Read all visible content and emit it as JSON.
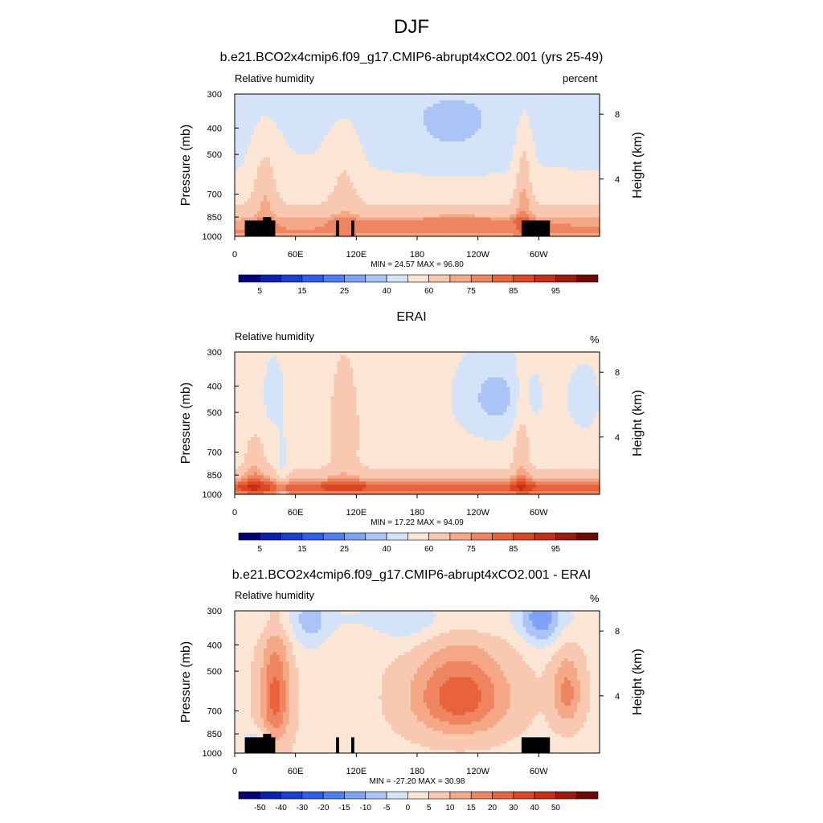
{
  "title": "DJF",
  "chart_data": [
    {
      "type": "heatmap",
      "title": "b.e21.BCO2x4cmip6.f09_g17.CMIP6-abrupt4xCO2.001 (yrs 25-49)",
      "left_label": "Relative humidity",
      "right_label": "percent",
      "ylabel": "Pressure (mb)",
      "y2label": "Height (km)",
      "y_ticks": [
        "300",
        "400",
        "500",
        "700",
        "850",
        "1000"
      ],
      "y_tick_values": [
        300,
        400,
        500,
        700,
        850,
        1000
      ],
      "y2_ticks": [
        "8",
        "4"
      ],
      "x_ticks": [
        "0",
        "60E",
        "120E",
        "180",
        "120W",
        "60W"
      ],
      "x_tick_values": [
        0,
        60,
        120,
        180,
        240,
        300
      ],
      "xlim": [
        0,
        360
      ],
      "ylim": [
        1000,
        300
      ],
      "min_max_text": "MIN = 24.57  MAX = 96.80",
      "levels": [
        5,
        10,
        15,
        20,
        25,
        30,
        40,
        50,
        60,
        70,
        75,
        80,
        85,
        90,
        95
      ],
      "level_labels": [
        "5",
        "15",
        "25",
        "40",
        "60",
        "75",
        "85",
        "95"
      ],
      "colors": [
        "#00007a",
        "#0b1fb0",
        "#1b3ed6",
        "#2e5ef0",
        "#4d7ef5",
        "#7ea2f5",
        "#aac5f5",
        "#d5e3f8",
        "#fbe6d6",
        "#f8c9b0",
        "#f4a886",
        "#ef8560",
        "#e9633a",
        "#dd4622",
        "#c42f16",
        "#9e1a0d",
        "#6e0a06"
      ],
      "field": "rh_model"
    },
    {
      "type": "heatmap",
      "title": "ERAI",
      "left_label": "Relative humidity",
      "right_label": "%",
      "ylabel": "Pressure (mb)",
      "y2label": "Height (km)",
      "y_ticks": [
        "300",
        "400",
        "500",
        "700",
        "850",
        "1000"
      ],
      "y_tick_values": [
        300,
        400,
        500,
        700,
        850,
        1000
      ],
      "y2_ticks": [
        "8",
        "4"
      ],
      "x_ticks": [
        "0",
        "60E",
        "120E",
        "180",
        "120W",
        "60W"
      ],
      "x_tick_values": [
        0,
        60,
        120,
        180,
        240,
        300
      ],
      "xlim": [
        0,
        360
      ],
      "ylim": [
        1000,
        300
      ],
      "min_max_text": "MIN = 17.22  MAX = 94.09",
      "levels": [
        5,
        10,
        15,
        20,
        25,
        30,
        40,
        50,
        60,
        70,
        75,
        80,
        85,
        90,
        95
      ],
      "level_labels": [
        "5",
        "15",
        "25",
        "40",
        "60",
        "75",
        "85",
        "95"
      ],
      "colors": [
        "#00007a",
        "#0b1fb0",
        "#1b3ed6",
        "#2e5ef0",
        "#4d7ef5",
        "#7ea2f5",
        "#aac5f5",
        "#d5e3f8",
        "#fbe6d6",
        "#f8c9b0",
        "#f4a886",
        "#ef8560",
        "#e9633a",
        "#dd4622",
        "#c42f16",
        "#9e1a0d",
        "#6e0a06"
      ],
      "field": "rh_obs"
    },
    {
      "type": "heatmap",
      "title": "b.e21.BCO2x4cmip6.f09_g17.CMIP6-abrupt4xCO2.001 - ERAI",
      "left_label": "Relative humidity",
      "right_label": "%",
      "ylabel": "Pressure (mb)",
      "y2label": "Height (km)",
      "y_ticks": [
        "300",
        "400",
        "500",
        "700",
        "850",
        "1000"
      ],
      "y_tick_values": [
        300,
        400,
        500,
        700,
        850,
        1000
      ],
      "y2_ticks": [
        "8",
        "4"
      ],
      "x_ticks": [
        "0",
        "60E",
        "120E",
        "180",
        "120W",
        "60W"
      ],
      "x_tick_values": [
        0,
        60,
        120,
        180,
        240,
        300
      ],
      "xlim": [
        0,
        360
      ],
      "ylim": [
        1000,
        300
      ],
      "min_max_text": "MIN = -27.20  MAX = 30.98",
      "levels": [
        -50,
        -40,
        -30,
        -20,
        -15,
        -10,
        -5,
        0,
        5,
        10,
        15,
        20,
        30,
        40,
        50
      ],
      "level_labels": [
        "-50",
        "-40",
        "-30",
        "-20",
        "-15",
        "-10",
        "-5",
        "0",
        "5",
        "10",
        "15",
        "20",
        "30",
        "40",
        "50"
      ],
      "colors": [
        "#00007a",
        "#0b1fb0",
        "#1b3ed6",
        "#2e5ef0",
        "#4d7ef5",
        "#7ea2f5",
        "#aac5f5",
        "#d5e3f8",
        "#fbe6d6",
        "#f8c9b0",
        "#f4a886",
        "#ef8560",
        "#e9633a",
        "#dd4622",
        "#c42f16",
        "#9e1a0d",
        "#6e0a06"
      ],
      "field": "rh_diff"
    }
  ]
}
